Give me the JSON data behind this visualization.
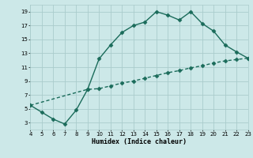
{
  "xlabel": "Humidex (Indice chaleur)",
  "bg_color": "#cce8e8",
  "grid_color": "#aacccc",
  "line_color": "#1a6b5a",
  "xlim": [
    4,
    23
  ],
  "ylim": [
    2,
    20
  ],
  "xticks": [
    4,
    5,
    6,
    7,
    8,
    9,
    10,
    11,
    12,
    13,
    14,
    15,
    16,
    17,
    18,
    19,
    20,
    21,
    22,
    23
  ],
  "yticks": [
    3,
    5,
    7,
    9,
    11,
    13,
    15,
    17,
    19
  ],
  "series1_x": [
    4,
    5,
    6,
    7,
    8,
    9,
    10,
    11,
    12,
    13,
    14,
    15,
    16,
    17,
    18,
    19,
    20,
    21,
    22,
    23
  ],
  "series1_y": [
    5.5,
    4.5,
    3.5,
    2.8,
    4.8,
    7.8,
    12.2,
    14.2,
    16.0,
    17.0,
    17.5,
    19.0,
    18.5,
    17.8,
    19.0,
    17.3,
    16.2,
    14.2,
    13.2,
    12.3
  ],
  "series2_x": [
    4,
    9,
    10,
    11,
    12,
    13,
    14,
    15,
    16,
    17,
    18,
    19,
    20,
    21,
    22,
    23
  ],
  "series2_y": [
    5.5,
    7.8,
    7.9,
    8.3,
    8.7,
    9.0,
    9.4,
    9.8,
    10.2,
    10.5,
    10.9,
    11.2,
    11.6,
    11.9,
    12.1,
    12.3
  ],
  "marker": "D",
  "markersize": 2.5,
  "linewidth": 1.0
}
